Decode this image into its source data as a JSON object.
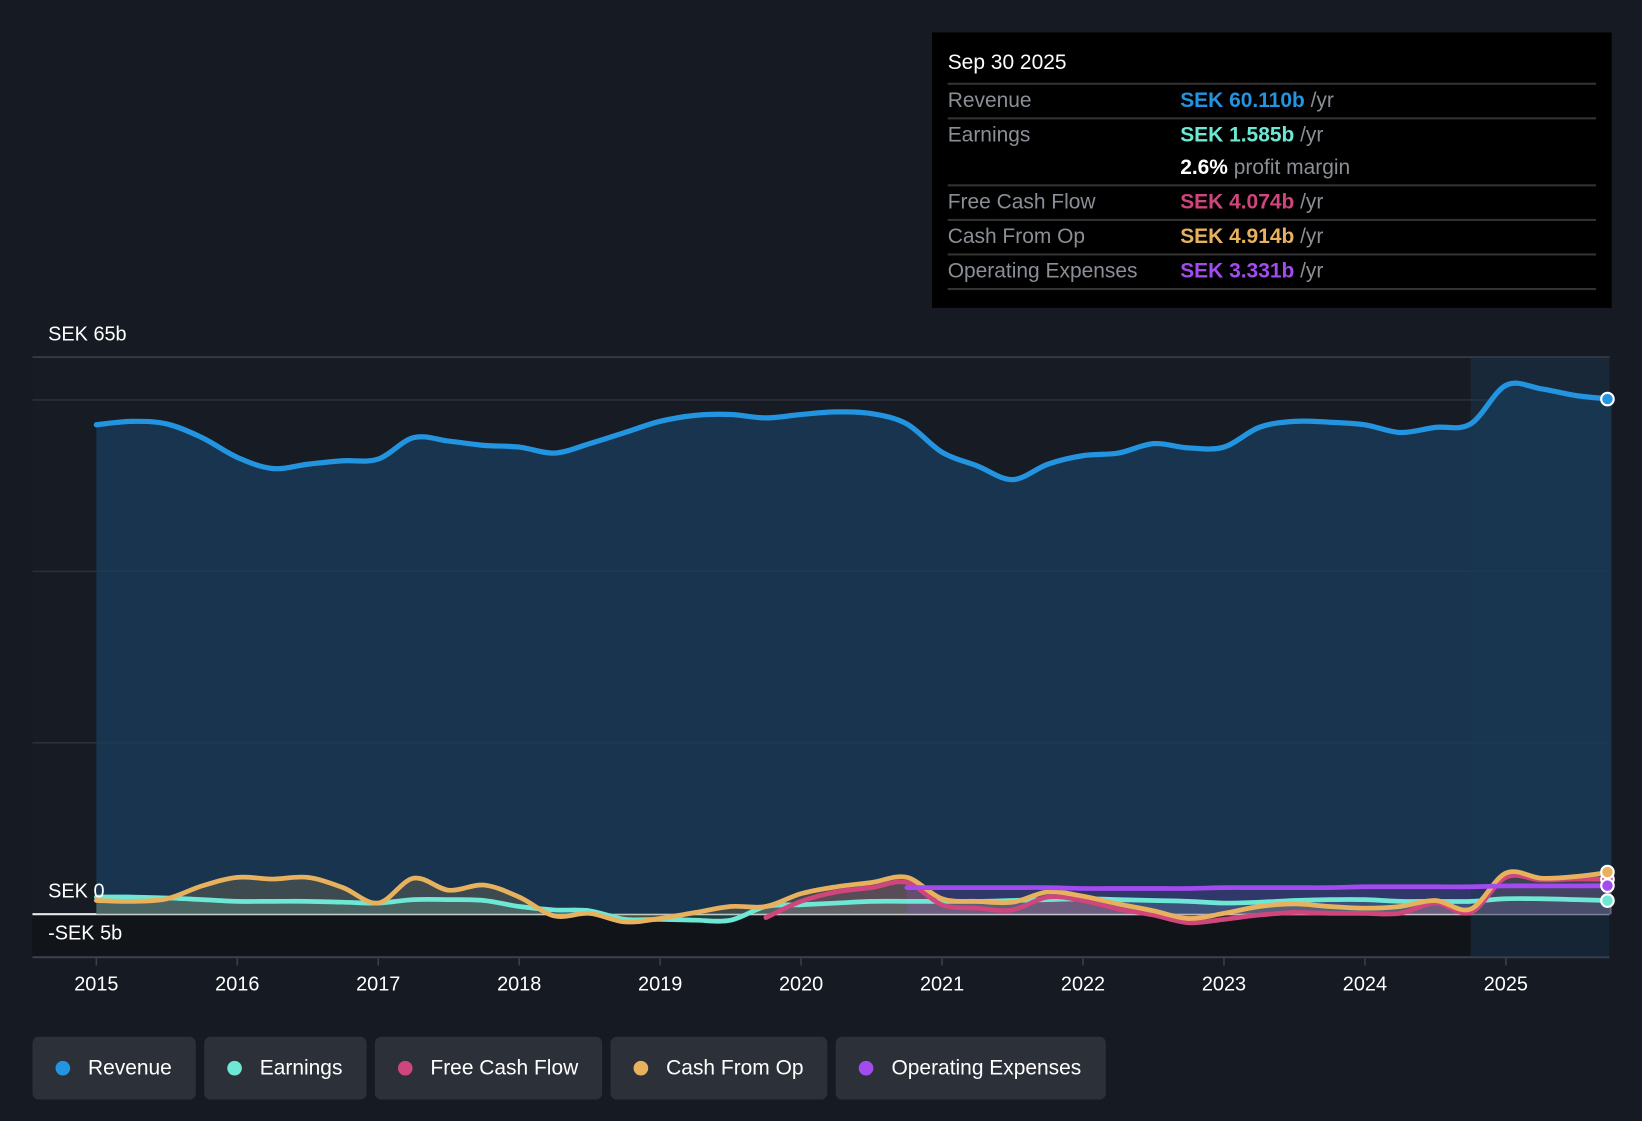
{
  "tooltip": {
    "date": "Sep 30 2025",
    "rows": [
      {
        "label": "Revenue",
        "value": "SEK 60.110b",
        "unit": " /yr",
        "color": "#2394df"
      },
      {
        "label": "Earnings",
        "value": "SEK 1.585b",
        "unit": " /yr",
        "color": "#6ee7d4"
      },
      {
        "label": "",
        "value": "2.6%",
        "unit": " profit margin",
        "color": "#ffffff"
      },
      {
        "label": "Free Cash Flow",
        "value": "SEK 4.074b",
        "unit": " /yr",
        "color": "#d0457c"
      },
      {
        "label": "Cash From Op",
        "value": "SEK 4.914b",
        "unit": " /yr",
        "color": "#e8b15e"
      },
      {
        "label": "Operating Expenses",
        "value": "SEK 3.331b",
        "unit": " /yr",
        "color": "#a24bef"
      }
    ]
  },
  "chart_data": {
    "type": "line",
    "title": "",
    "xlabel": "",
    "ylabel": "",
    "ylim": [
      -5,
      65
    ],
    "y_tick_labels": {
      "top": "SEK 65b",
      "zero": "SEK 0",
      "bottom": "-SEK 5b"
    },
    "x_ticks": [
      2015,
      2016,
      2017,
      2018,
      2019,
      2020,
      2021,
      2022,
      2023,
      2024,
      2025
    ],
    "x_tick_labels": [
      "2015",
      "2016",
      "2017",
      "2018",
      "2019",
      "2020",
      "2021",
      "2022",
      "2023",
      "2024",
      "2025"
    ],
    "highlight_from": 2024.75,
    "legend_position": "bottom-left",
    "series": [
      {
        "name": "Revenue",
        "color": "#2394df",
        "x0": 2015,
        "step": 0.25,
        "values": [
          57.1,
          57.5,
          57.2,
          55.6,
          53.3,
          52.0,
          52.5,
          52.9,
          53.1,
          55.6,
          55.2,
          54.7,
          54.5,
          53.8,
          54.9,
          56.2,
          57.5,
          58.2,
          58.3,
          57.9,
          58.3,
          58.6,
          58.4,
          57.2,
          53.9,
          52.3,
          50.7,
          52.5,
          53.5,
          53.8,
          54.9,
          54.4,
          54.5,
          56.8,
          57.5,
          57.4,
          57.1,
          56.2,
          56.8,
          57.2,
          61.7,
          61.3,
          60.5,
          60.1
        ]
      },
      {
        "name": "Earnings",
        "color": "#6ee7d4",
        "x0": 2015,
        "step": 0.25,
        "values": [
          2.0,
          2.0,
          1.9,
          1.7,
          1.5,
          1.5,
          1.5,
          1.4,
          1.3,
          1.7,
          1.7,
          1.6,
          0.9,
          0.5,
          0.4,
          -0.6,
          -0.6,
          -0.7,
          -0.7,
          0.9,
          1.1,
          1.3,
          1.5,
          1.5,
          1.5,
          1.5,
          1.6,
          1.7,
          1.8,
          1.7,
          1.6,
          1.5,
          1.3,
          1.4,
          1.6,
          1.7,
          1.7,
          1.5,
          1.5,
          1.5,
          1.8,
          1.8,
          1.7,
          1.585
        ]
      },
      {
        "name": "Free Cash Flow",
        "color": "#d0457c",
        "x0": 2019.75,
        "step": 0.25,
        "values": [
          -0.4,
          1.5,
          2.6,
          3.1,
          3.7,
          1.1,
          0.7,
          0.5,
          2.0,
          1.6,
          0.6,
          -0.1,
          -1.0,
          -0.6,
          -0.1,
          0.2,
          0.1,
          0.1,
          0.1,
          1.3,
          0.2,
          4.3,
          4.0,
          4.1,
          4.074
        ]
      },
      {
        "name": "Cash From Op",
        "color": "#e8b15e",
        "x0": 2015,
        "step": 0.25,
        "values": [
          1.6,
          1.5,
          1.8,
          3.3,
          4.3,
          4.1,
          4.3,
          3.1,
          1.3,
          4.2,
          2.8,
          3.4,
          2.0,
          -0.2,
          0.1,
          -0.9,
          -0.5,
          0.2,
          0.9,
          0.9,
          2.4,
          3.2,
          3.7,
          4.3,
          1.8,
          1.5,
          1.4,
          2.6,
          2.1,
          1.2,
          0.4,
          -0.5,
          0.1,
          0.9,
          1.2,
          0.9,
          0.7,
          0.9,
          1.6,
          0.6,
          4.8,
          4.2,
          4.4,
          4.914
        ]
      },
      {
        "name": "Operating Expenses",
        "color": "#a24bef",
        "x0": 2020.75,
        "step": 0.25,
        "values": [
          3.1,
          3.1,
          3.1,
          3.1,
          3.1,
          3.0,
          3.0,
          3.0,
          3.0,
          3.1,
          3.1,
          3.1,
          3.1,
          3.2,
          3.2,
          3.2,
          3.2,
          3.3,
          3.3,
          3.3,
          3.331
        ]
      }
    ]
  },
  "legend": [
    {
      "label": "Revenue",
      "color": "#2394df"
    },
    {
      "label": "Earnings",
      "color": "#6ee7d4"
    },
    {
      "label": "Free Cash Flow",
      "color": "#d0457c"
    },
    {
      "label": "Cash From Op",
      "color": "#e8b15e"
    },
    {
      "label": "Operating Expenses",
      "color": "#a24bef"
    }
  ]
}
